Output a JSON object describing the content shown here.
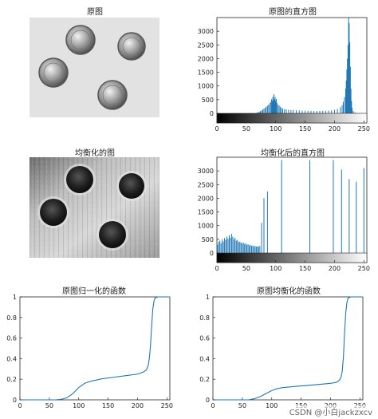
{
  "titles": {
    "orig_image": "原图",
    "orig_hist": "原图的直方图",
    "eq_image": "均衡化的图",
    "eq_hist": "均衡化后的直方图",
    "orig_cdf": "原图归一化的函数",
    "eq_cdf": "原图均衡化的函数"
  },
  "watermark": "CSDN @小白jackzxcv",
  "colors": {
    "series": "#1f77b4",
    "axis": "#262626"
  },
  "chart_data": [
    {
      "id": "orig_hist",
      "type": "bar",
      "title": "原图的直方图",
      "xlim": [
        0,
        255
      ],
      "ylim": [
        0,
        3500
      ],
      "xticks": [
        "0",
        "50",
        "100",
        "150",
        "200",
        "250"
      ],
      "xtick_values": [
        0,
        50,
        100,
        150,
        200,
        250
      ],
      "yticks": [
        "0",
        "500",
        "1000",
        "1500",
        "2000",
        "2500",
        "3000"
      ],
      "ytick_values": [
        0,
        500,
        1000,
        1500,
        2000,
        2500,
        3000
      ],
      "colorbar": "grayscale",
      "bars": [
        [
          68,
          20
        ],
        [
          70,
          40
        ],
        [
          72,
          60
        ],
        [
          74,
          80
        ],
        [
          76,
          110
        ],
        [
          78,
          140
        ],
        [
          80,
          170
        ],
        [
          82,
          200
        ],
        [
          84,
          240
        ],
        [
          86,
          280
        ],
        [
          88,
          320
        ],
        [
          90,
          380
        ],
        [
          92,
          420
        ],
        [
          93,
          520
        ],
        [
          94,
          450
        ],
        [
          95,
          600
        ],
        [
          96,
          480
        ],
        [
          97,
          700
        ],
        [
          98,
          520
        ],
        [
          99,
          600
        ],
        [
          100,
          450
        ],
        [
          101,
          520
        ],
        [
          102,
          380
        ],
        [
          104,
          320
        ],
        [
          106,
          280
        ],
        [
          108,
          240
        ],
        [
          110,
          200
        ],
        [
          112,
          170
        ],
        [
          115,
          150
        ],
        [
          118,
          140
        ],
        [
          122,
          130
        ],
        [
          126,
          120
        ],
        [
          130,
          120
        ],
        [
          135,
          110
        ],
        [
          140,
          110
        ],
        [
          145,
          100
        ],
        [
          150,
          100
        ],
        [
          155,
          95
        ],
        [
          160,
          95
        ],
        [
          165,
          90
        ],
        [
          170,
          90
        ],
        [
          175,
          90
        ],
        [
          180,
          90
        ],
        [
          185,
          95
        ],
        [
          190,
          100
        ],
        [
          195,
          110
        ],
        [
          200,
          130
        ],
        [
          205,
          160
        ],
        [
          210,
          220
        ],
        [
          213,
          300
        ],
        [
          215,
          420
        ],
        [
          217,
          600
        ],
        [
          219,
          900
        ],
        [
          220,
          1200
        ],
        [
          221,
          1600
        ],
        [
          222,
          2000
        ],
        [
          223,
          2500
        ],
        [
          224,
          3500
        ],
        [
          225,
          3300
        ],
        [
          226,
          2600
        ],
        [
          227,
          1700
        ],
        [
          228,
          900
        ],
        [
          229,
          450
        ],
        [
          230,
          200
        ],
        [
          232,
          80
        ],
        [
          235,
          30
        ]
      ]
    },
    {
      "id": "eq_hist",
      "type": "bar",
      "title": "均衡化后的直方图",
      "xlim": [
        0,
        255
      ],
      "ylim": [
        0,
        3500
      ],
      "xticks": [
        "0",
        "50",
        "100",
        "150",
        "200",
        "250"
      ],
      "xtick_values": [
        0,
        50,
        100,
        150,
        200,
        250
      ],
      "yticks": [
        "0",
        "500",
        "1000",
        "1500",
        "2000",
        "2500",
        "3000"
      ],
      "ytick_values": [
        0,
        500,
        1000,
        1500,
        2000,
        2500,
        3000
      ],
      "colorbar": "grayscale",
      "bars": [
        [
          1,
          300
        ],
        [
          3,
          400
        ],
        [
          5,
          450
        ],
        [
          7,
          350
        ],
        [
          9,
          500
        ],
        [
          11,
          420
        ],
        [
          13,
          550
        ],
        [
          15,
          480
        ],
        [
          17,
          600
        ],
        [
          19,
          520
        ],
        [
          21,
          650
        ],
        [
          23,
          560
        ],
        [
          25,
          700
        ],
        [
          27,
          600
        ],
        [
          29,
          500
        ],
        [
          31,
          560
        ],
        [
          33,
          450
        ],
        [
          35,
          480
        ],
        [
          37,
          400
        ],
        [
          39,
          420
        ],
        [
          41,
          380
        ],
        [
          43,
          350
        ],
        [
          45,
          380
        ],
        [
          47,
          330
        ],
        [
          49,
          350
        ],
        [
          51,
          300
        ],
        [
          53,
          320
        ],
        [
          55,
          280
        ],
        [
          57,
          300
        ],
        [
          59,
          260
        ],
        [
          61,
          280
        ],
        [
          63,
          240
        ],
        [
          65,
          260
        ],
        [
          67,
          230
        ],
        [
          69,
          250
        ],
        [
          71,
          230
        ],
        [
          73,
          260
        ],
        [
          76,
          1100
        ],
        [
          80,
          2000
        ],
        [
          86,
          2250
        ],
        [
          110,
          3400
        ],
        [
          158,
          3400
        ],
        [
          198,
          3400
        ],
        [
          212,
          3050
        ],
        [
          225,
          2700
        ],
        [
          237,
          2600
        ],
        [
          250,
          3100
        ]
      ]
    },
    {
      "id": "orig_cdf",
      "type": "line",
      "title": "原图归一化的函数",
      "xlim": [
        0,
        255
      ],
      "ylim": [
        0,
        1
      ],
      "xticks": [
        "0",
        "50",
        "100",
        "150",
        "200",
        "250"
      ],
      "xtick_values": [
        0,
        50,
        100,
        150,
        200,
        250
      ],
      "yticks": [
        "0",
        "0.2",
        "0.4",
        "0.6",
        "0.8",
        "1"
      ],
      "ytick_values": [
        0,
        0.2,
        0.4,
        0.6,
        0.8,
        1
      ],
      "x": [
        0,
        60,
        70,
        80,
        90,
        100,
        110,
        120,
        140,
        160,
        180,
        200,
        210,
        215,
        218,
        220,
        222,
        224,
        226,
        228,
        230,
        235,
        255
      ],
      "y": [
        0,
        0,
        0.005,
        0.02,
        0.06,
        0.12,
        0.16,
        0.18,
        0.205,
        0.22,
        0.235,
        0.25,
        0.27,
        0.29,
        0.33,
        0.4,
        0.52,
        0.72,
        0.88,
        0.96,
        0.99,
        1,
        1
      ]
    },
    {
      "id": "eq_cdf",
      "type": "line",
      "title": "原图均衡化的函数",
      "xlim": [
        0,
        255
      ],
      "ylim": [
        0,
        1
      ],
      "xticks": [
        "0",
        "50",
        "100",
        "150",
        "200",
        "250"
      ],
      "xtick_values": [
        0,
        50,
        100,
        150,
        200,
        250
      ],
      "yticks": [
        "0",
        "0.2",
        "0.4",
        "0.6",
        "0.8",
        "1"
      ],
      "ytick_values": [
        0,
        0.2,
        0.4,
        0.6,
        0.8,
        1
      ],
      "x": [
        0,
        60,
        70,
        80,
        90,
        100,
        110,
        120,
        140,
        160,
        180,
        200,
        210,
        215,
        218,
        220,
        222,
        224,
        226,
        228,
        230,
        235,
        255
      ],
      "y": [
        0,
        0,
        0.01,
        0.03,
        0.06,
        0.09,
        0.11,
        0.12,
        0.13,
        0.14,
        0.15,
        0.16,
        0.17,
        0.19,
        0.22,
        0.28,
        0.42,
        0.66,
        0.85,
        0.95,
        0.99,
        1,
        1
      ]
    }
  ]
}
